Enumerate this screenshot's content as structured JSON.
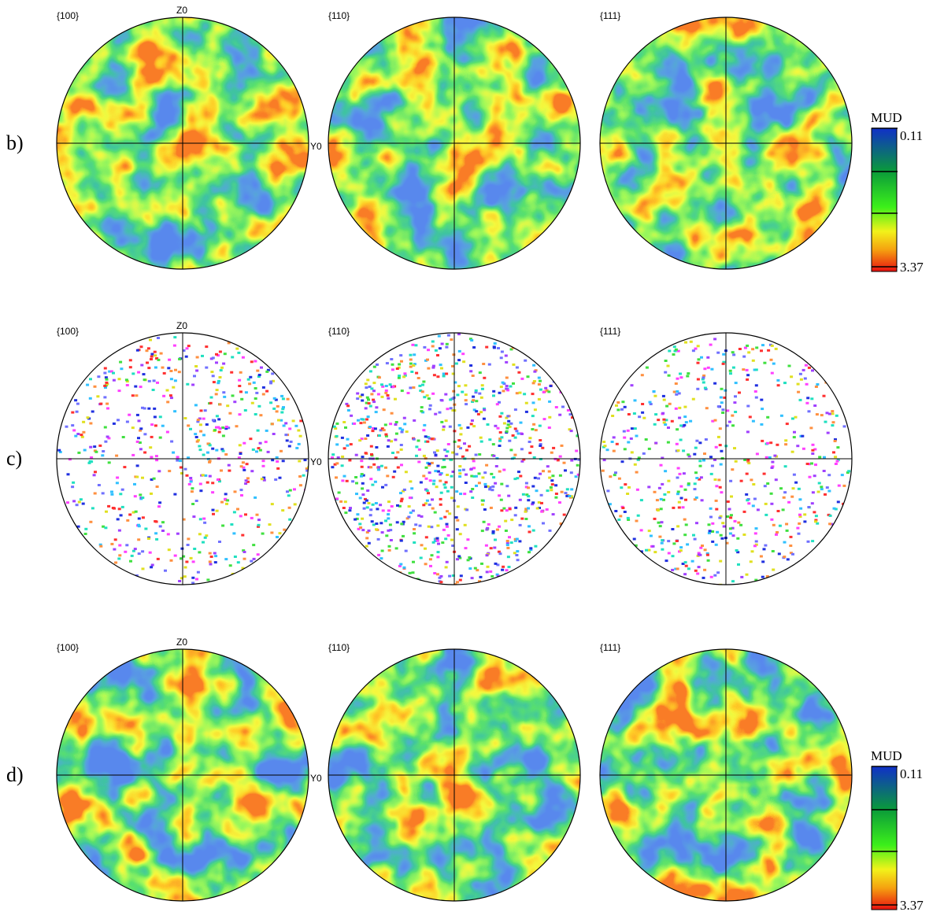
{
  "rows": [
    {
      "label": "b)",
      "panels": [
        {
          "title": "{100}",
          "z_label": "Z0",
          "y_label": "Y0"
        },
        {
          "title": "{110}"
        },
        {
          "title": "{111}"
        }
      ],
      "kind": "density"
    },
    {
      "label": "c)",
      "panels": [
        {
          "title": "{100}",
          "z_label": "Z0",
          "y_label": "Y0"
        },
        {
          "title": "{110}"
        },
        {
          "title": "{111}"
        }
      ],
      "kind": "points"
    },
    {
      "label": "d)",
      "panels": [
        {
          "title": "{100}",
          "z_label": "Z0",
          "y_label": "Y0"
        },
        {
          "title": "{110}"
        },
        {
          "title": "{111}"
        }
      ],
      "kind": "density"
    }
  ],
  "colorbars": [
    {
      "title": "MUD",
      "top": "0.11",
      "bottom": "3.37"
    },
    {
      "title": "MUD",
      "top": "0.11",
      "bottom": "3.37"
    }
  ]
}
